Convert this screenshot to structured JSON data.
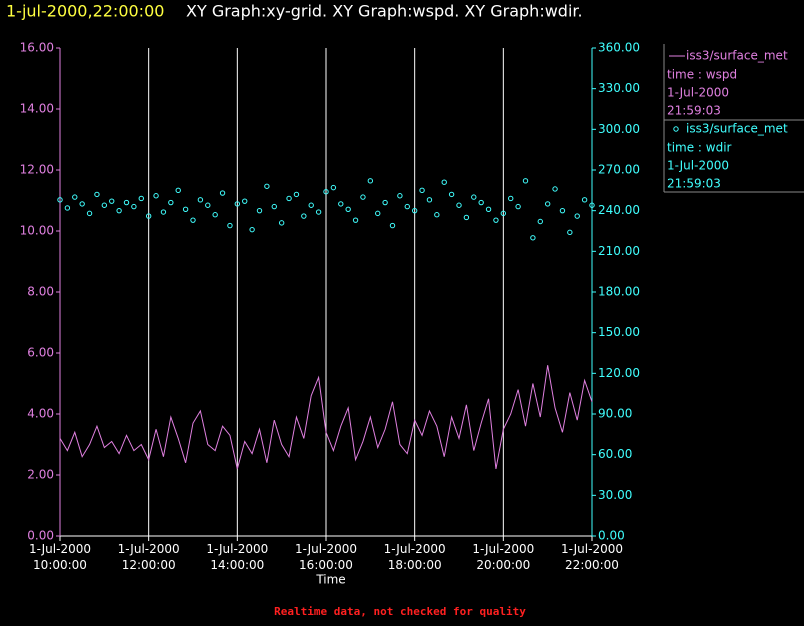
{
  "chart_data": {
    "type": "line",
    "title_time": "1-jul-2000,22:00:00",
    "title": "XY Graph:xy-grid.  XY Graph:wspd.  XY Graph:wdir.",
    "x_label": "Time",
    "note": "Realtime data, not checked for quality",
    "grid": true,
    "xlim": [
      "2000-07-01T10:00:00",
      "2000-07-01T22:00:00"
    ],
    "xticks": [
      {
        "value": "2000-07-01T10:00:00",
        "label": "1-Jul-2000\n10:00:00"
      },
      {
        "value": "2000-07-01T12:00:00",
        "label": "1-Jul-2000\n12:00:00"
      },
      {
        "value": "2000-07-01T14:00:00",
        "label": "1-Jul-2000\n14:00:00"
      },
      {
        "value": "2000-07-01T16:00:00",
        "label": "1-Jul-2000\n16:00:00"
      },
      {
        "value": "2000-07-01T18:00:00",
        "label": "1-Jul-2000\n18:00:00"
      },
      {
        "value": "2000-07-01T20:00:00",
        "label": "1-Jul-2000\n20:00:00"
      },
      {
        "value": "2000-07-01T22:00:00",
        "label": "1-Jul-2000\n22:00:00"
      }
    ],
    "ylim": [
      0,
      16
    ],
    "yticks": [
      {
        "value": 0,
        "label": "0.00"
      },
      {
        "value": 2,
        "label": "2.00"
      },
      {
        "value": 4,
        "label": "4.00"
      },
      {
        "value": 6,
        "label": "6.00"
      },
      {
        "value": 8,
        "label": "8.00"
      },
      {
        "value": 10,
        "label": "10.00"
      },
      {
        "value": 12,
        "label": "12.00"
      },
      {
        "value": 14,
        "label": "14.00"
      },
      {
        "value": 16,
        "label": "16.00"
      }
    ],
    "y2lim": [
      0,
      360
    ],
    "y2ticks": [
      {
        "value": 0,
        "label": "0.00"
      },
      {
        "value": 30,
        "label": "30.00"
      },
      {
        "value": 60,
        "label": "60.00"
      },
      {
        "value": 90,
        "label": "90.00"
      },
      {
        "value": 120,
        "label": "120.00"
      },
      {
        "value": 150,
        "label": "150.00"
      },
      {
        "value": 180,
        "label": "180.00"
      },
      {
        "value": 210,
        "label": "210.00"
      },
      {
        "value": 240,
        "label": "240.00"
      },
      {
        "value": 270,
        "label": "270.00"
      },
      {
        "value": 300,
        "label": "300.00"
      },
      {
        "value": 330,
        "label": "330.00"
      },
      {
        "value": 360,
        "label": "360.00"
      }
    ],
    "x": [
      "2000-07-01T10:00:00",
      "2000-07-01T10:10:00",
      "2000-07-01T10:20:00",
      "2000-07-01T10:30:00",
      "2000-07-01T10:40:00",
      "2000-07-01T10:50:00",
      "2000-07-01T11:00:00",
      "2000-07-01T11:10:00",
      "2000-07-01T11:20:00",
      "2000-07-01T11:30:00",
      "2000-07-01T11:40:00",
      "2000-07-01T11:50:00",
      "2000-07-01T12:00:00",
      "2000-07-01T12:10:00",
      "2000-07-01T12:20:00",
      "2000-07-01T12:30:00",
      "2000-07-01T12:40:00",
      "2000-07-01T12:50:00",
      "2000-07-01T13:00:00",
      "2000-07-01T13:10:00",
      "2000-07-01T13:20:00",
      "2000-07-01T13:30:00",
      "2000-07-01T13:40:00",
      "2000-07-01T13:50:00",
      "2000-07-01T14:00:00",
      "2000-07-01T14:10:00",
      "2000-07-01T14:20:00",
      "2000-07-01T14:30:00",
      "2000-07-01T14:40:00",
      "2000-07-01T14:50:00",
      "2000-07-01T15:00:00",
      "2000-07-01T15:10:00",
      "2000-07-01T15:20:00",
      "2000-07-01T15:30:00",
      "2000-07-01T15:40:00",
      "2000-07-01T15:50:00",
      "2000-07-01T16:00:00",
      "2000-07-01T16:10:00",
      "2000-07-01T16:20:00",
      "2000-07-01T16:30:00",
      "2000-07-01T16:40:00",
      "2000-07-01T16:50:00",
      "2000-07-01T17:00:00",
      "2000-07-01T17:10:00",
      "2000-07-01T17:20:00",
      "2000-07-01T17:30:00",
      "2000-07-01T17:40:00",
      "2000-07-01T17:50:00",
      "2000-07-01T18:00:00",
      "2000-07-01T18:10:00",
      "2000-07-01T18:20:00",
      "2000-07-01T18:30:00",
      "2000-07-01T18:40:00",
      "2000-07-01T18:50:00",
      "2000-07-01T19:00:00",
      "2000-07-01T19:10:00",
      "2000-07-01T19:20:00",
      "2000-07-01T19:30:00",
      "2000-07-01T19:40:00",
      "2000-07-01T19:50:00",
      "2000-07-01T20:00:00",
      "2000-07-01T20:10:00",
      "2000-07-01T20:20:00",
      "2000-07-01T20:30:00",
      "2000-07-01T20:40:00",
      "2000-07-01T20:50:00",
      "2000-07-01T21:00:00",
      "2000-07-01T21:10:00",
      "2000-07-01T21:20:00",
      "2000-07-01T21:30:00",
      "2000-07-01T21:40:00",
      "2000-07-01T21:50:00",
      "2000-07-01T22:00:00"
    ],
    "series": [
      {
        "name": "iss3/surface_met",
        "type": "line",
        "color": "#e080e0",
        "variable": "time : wspd",
        "date": "1-Jul-2000",
        "time": "21:59:03",
        "values": [
          3.2,
          2.8,
          3.4,
          2.6,
          3.0,
          3.6,
          2.9,
          3.1,
          2.7,
          3.3,
          2.8,
          3.0,
          2.5,
          3.5,
          2.6,
          3.9,
          3.2,
          2.4,
          3.7,
          4.1,
          3.0,
          2.8,
          3.6,
          3.3,
          2.2,
          3.1,
          2.7,
          3.5,
          2.4,
          3.8,
          3.0,
          2.6,
          3.9,
          3.2,
          4.6,
          5.2,
          3.4,
          2.8,
          3.6,
          4.2,
          2.5,
          3.1,
          3.9,
          2.9,
          3.5,
          4.4,
          3.0,
          2.7,
          3.8,
          3.3,
          4.1,
          3.6,
          2.6,
          3.9,
          3.2,
          4.3,
          2.8,
          3.7,
          4.5,
          2.2,
          3.5,
          4.0,
          4.8,
          3.6,
          5.0,
          3.9,
          5.6,
          4.2,
          3.4,
          4.7,
          3.8,
          5.1,
          4.4
        ]
      },
      {
        "name": "iss3/surface_met",
        "type": "scatter",
        "axis": "y2",
        "color": "#40ffff",
        "variable": "time : wdir",
        "date": "1-Jul-2000",
        "time": "21:59:03",
        "values": [
          248,
          242,
          250,
          245,
          238,
          252,
          244,
          247,
          240,
          246,
          243,
          249,
          236,
          251,
          239,
          246,
          255,
          241,
          233,
          248,
          244,
          237,
          253,
          229,
          245,
          247,
          226,
          240,
          258,
          243,
          231,
          249,
          252,
          236,
          244,
          239,
          254,
          257,
          245,
          241,
          233,
          250,
          262,
          238,
          246,
          229,
          251,
          243,
          240,
          255,
          248,
          237,
          261,
          252,
          244,
          235,
          250,
          246,
          241,
          233,
          238,
          249,
          243,
          262,
          220,
          232,
          245,
          256,
          240,
          224,
          236,
          248,
          244
        ]
      }
    ]
  }
}
